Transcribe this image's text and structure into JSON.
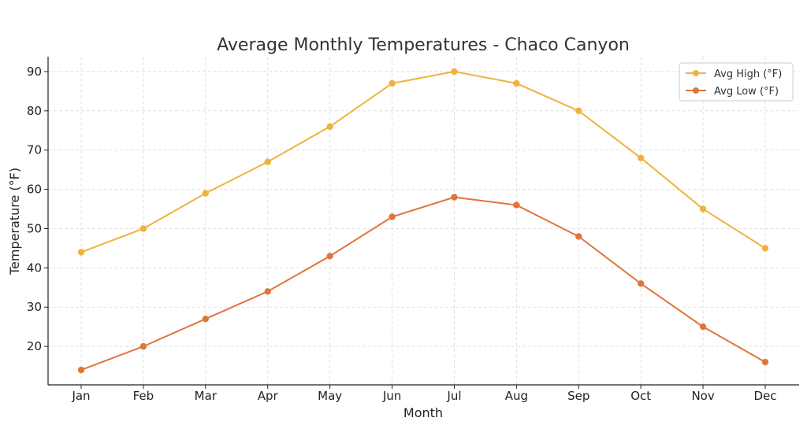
{
  "chart_data": {
    "type": "line",
    "title": "Average Monthly Temperatures - Chaco Canyon",
    "xlabel": "Month",
    "ylabel": "Temperature (°F)",
    "categories": [
      "Jan",
      "Feb",
      "Mar",
      "Apr",
      "May",
      "Jun",
      "Jul",
      "Aug",
      "Sep",
      "Oct",
      "Nov",
      "Dec"
    ],
    "series": [
      {
        "name": "Avg High (°F)",
        "color": "#f0b23c",
        "values": [
          44,
          50,
          59,
          67,
          76,
          87,
          90,
          87,
          80,
          68,
          55,
          45
        ]
      },
      {
        "name": "Avg Low (°F)",
        "color": "#e0753a",
        "values": [
          14,
          20,
          27,
          34,
          43,
          53,
          58,
          56,
          48,
          36,
          25,
          16
        ]
      }
    ],
    "ylim": [
      10.2,
      93.8
    ],
    "yticks": [
      20,
      30,
      40,
      50,
      60,
      70,
      80,
      90
    ],
    "grid": true,
    "legend": "top-right"
  }
}
